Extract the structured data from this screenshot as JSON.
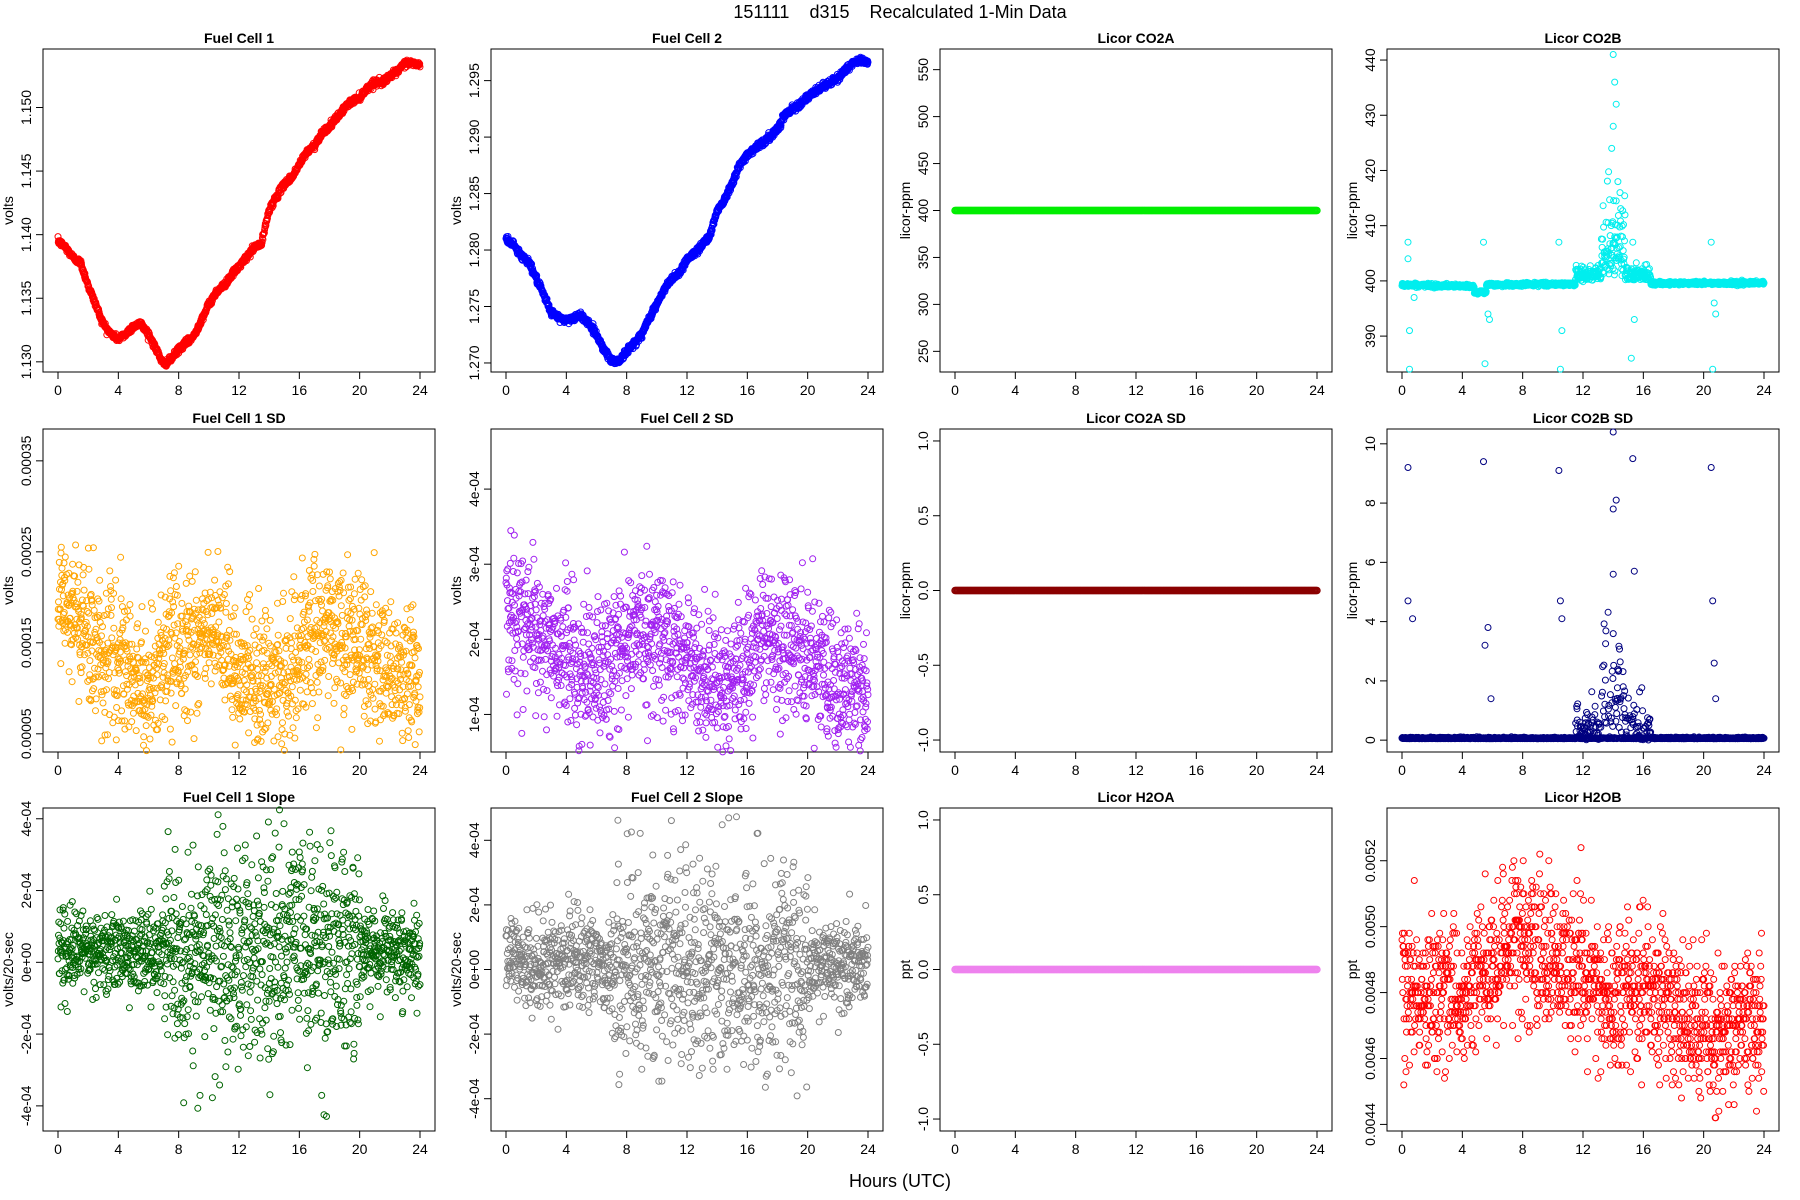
{
  "title": "151111    d315    Recalculated 1-Min Data",
  "x_label": "Hours (UTC)",
  "chart_data": [
    {
      "type": "scatter",
      "title": "Fuel Cell 1",
      "ylabel": "volts",
      "color": "#ff0000",
      "xlim": [
        0,
        24
      ],
      "ylim": [
        1.1292,
        1.1546
      ],
      "x_ticks": [
        "0",
        "4",
        "8",
        "12",
        "16",
        "20",
        "24"
      ],
      "y_ticks": [
        "1.130",
        "1.135",
        "1.140",
        "1.145",
        "1.150"
      ],
      "series": [
        {
          "kind": "path",
          "x": [
            0,
            0.5,
            1,
            1.5,
            2,
            2.5,
            3,
            3.5,
            4,
            4.5,
            5,
            5.5,
            6,
            6.5,
            7,
            7.5,
            8,
            8.5,
            9,
            9.5,
            10,
            10.5,
            11,
            11.5,
            12,
            12.5,
            13,
            13.5,
            14,
            14.5,
            15,
            15.5,
            16,
            16.5,
            17,
            17.5,
            18,
            18.5,
            19,
            19.5,
            20,
            20.5,
            21,
            21.5,
            22,
            22.5,
            23,
            23.5,
            24
          ],
          "y": [
            1.1395,
            1.139,
            1.1382,
            1.1378,
            1.136,
            1.1345,
            1.133,
            1.1322,
            1.1318,
            1.1322,
            1.1328,
            1.133,
            1.1322,
            1.131,
            1.1298,
            1.1302,
            1.131,
            1.1315,
            1.132,
            1.1333,
            1.1345,
            1.1355,
            1.136,
            1.1368,
            1.1375,
            1.1382,
            1.139,
            1.1393,
            1.142,
            1.143,
            1.144,
            1.1445,
            1.1455,
            1.1465,
            1.147,
            1.148,
            1.1485,
            1.1492,
            1.15,
            1.1505,
            1.1508,
            1.1515,
            1.152,
            1.152,
            1.1525,
            1.1528,
            1.1535,
            1.1535,
            1.1533
          ],
          "noise": 0.00025,
          "dense": true
        }
      ]
    },
    {
      "type": "scatter",
      "title": "Fuel Cell 2",
      "ylabel": "volts",
      "color": "#0000ff",
      "xlim": [
        0,
        24
      ],
      "ylim": [
        1.2692,
        1.2978
      ],
      "x_ticks": [
        "0",
        "4",
        "8",
        "12",
        "16",
        "20",
        "24"
      ],
      "y_ticks": [
        "1.270",
        "1.275",
        "1.280",
        "1.285",
        "1.290",
        "1.295"
      ],
      "series": [
        {
          "kind": "path",
          "x": [
            0,
            0.5,
            1,
            1.5,
            2,
            2.5,
            3,
            3.5,
            4,
            4.5,
            5,
            5.5,
            6,
            6.5,
            7,
            7.5,
            8,
            8.5,
            9,
            9.5,
            10,
            10.5,
            11,
            11.5,
            12,
            12.5,
            13,
            13.5,
            14,
            14.5,
            15,
            15.5,
            16,
            16.5,
            17,
            17.5,
            18,
            18.5,
            19,
            19.5,
            20,
            20.5,
            21,
            21.5,
            22,
            22.5,
            23,
            23.5,
            24
          ],
          "y": [
            1.281,
            1.2805,
            1.2795,
            1.279,
            1.2775,
            1.276,
            1.2745,
            1.274,
            1.2738,
            1.274,
            1.2742,
            1.2735,
            1.2725,
            1.2712,
            1.2702,
            1.2702,
            1.271,
            1.2718,
            1.2725,
            1.274,
            1.2752,
            1.2765,
            1.2775,
            1.278,
            1.2792,
            1.2797,
            1.2805,
            1.2812,
            1.2835,
            1.2845,
            1.286,
            1.2875,
            1.2885,
            1.289,
            1.2895,
            1.29,
            1.2908,
            1.292,
            1.2925,
            1.293,
            1.2935,
            1.294,
            1.2945,
            1.2948,
            1.2952,
            1.296,
            1.2965,
            1.2968,
            1.2967
          ],
          "noise": 0.0003,
          "dense": true
        }
      ]
    },
    {
      "type": "scatter",
      "title": "Licor CO2A",
      "ylabel": "licor-ppm",
      "color": "#00ee00",
      "xlim": [
        0,
        24
      ],
      "ylim": [
        228,
        572
      ],
      "x_ticks": [
        "0",
        "4",
        "8",
        "12",
        "16",
        "20",
        "24"
      ],
      "y_ticks": [
        "250",
        "300",
        "350",
        "400",
        "450",
        "500",
        "550"
      ],
      "series": [
        {
          "kind": "flat",
          "value": 400
        }
      ]
    },
    {
      "type": "scatter",
      "title": "Licor CO2B",
      "ylabel": "licor-ppm",
      "color": "#00eeee",
      "xlim": [
        0,
        24
      ],
      "ylim": [
        383.5,
        442
      ],
      "x_ticks": [
        "0",
        "4",
        "8",
        "12",
        "16",
        "20",
        "24"
      ],
      "y_ticks": [
        "390",
        "400",
        "410",
        "420",
        "430",
        "440"
      ],
      "series": [
        {
          "kind": "co2b"
        }
      ]
    },
    {
      "type": "scatter",
      "title": "Fuel Cell 1 SD",
      "ylabel": "volts",
      "color": "#ffa500",
      "xlim": [
        0,
        24
      ],
      "ylim": [
        3e-05,
        0.000385
      ],
      "x_ticks": [
        "0",
        "4",
        "8",
        "12",
        "16",
        "20",
        "24"
      ],
      "y_ticks": [
        "0.00005",
        "0.00015",
        "0.00025",
        "0.00035"
      ],
      "series": [
        {
          "kind": "noise",
          "baseline_x": [
            0,
            1,
            3,
            5,
            6,
            8,
            10,
            12,
            14,
            16,
            17,
            19,
            21,
            22,
            24
          ],
          "baseline_y": [
            0.00019,
            0.00018,
            0.00014,
            0.00011,
            0.0001,
            0.00015,
            0.00016,
            0.00012,
            0.0001,
            0.00012,
            0.00017,
            0.00015,
            0.00013,
            0.00011,
            0.00012
          ],
          "spread": 4e-05
        }
      ]
    },
    {
      "type": "scatter",
      "title": "Fuel Cell 2 SD",
      "ylabel": "volts",
      "color": "#a020f0",
      "xlim": [
        0,
        24
      ],
      "ylim": [
        5e-05,
        0.00048
      ],
      "x_ticks": [
        "0",
        "4",
        "8",
        "12",
        "16",
        "20",
        "24"
      ],
      "y_ticks": [
        "1e-04",
        "2e-04",
        "3e-04",
        "4e-04"
      ],
      "series": [
        {
          "kind": "noise",
          "baseline_x": [
            0,
            1,
            3,
            5,
            6,
            8,
            10,
            12,
            14,
            16,
            17,
            19,
            21,
            22,
            24
          ],
          "baseline_y": [
            0.00024,
            0.00023,
            0.00019,
            0.00016,
            0.00015,
            0.0002,
            0.00021,
            0.00017,
            0.00014,
            0.00016,
            0.00021,
            0.00019,
            0.00016,
            0.00013,
            0.00014
          ],
          "spread": 4.5e-05
        }
      ]
    },
    {
      "type": "scatter",
      "title": "Licor CO2A SD",
      "ylabel": "licor-ppm",
      "color": "#8b0000",
      "xlim": [
        0,
        24
      ],
      "ylim": [
        -1.08,
        1.08
      ],
      "x_ticks": [
        "0",
        "4",
        "8",
        "12",
        "16",
        "20",
        "24"
      ],
      "y_ticks": [
        "-1.0",
        "-0.5",
        "0.0",
        "0.5",
        "1.0"
      ],
      "series": [
        {
          "kind": "flat",
          "value": 0
        }
      ]
    },
    {
      "type": "scatter",
      "title": "Licor CO2B SD",
      "ylabel": "licor-ppm",
      "color": "#000080",
      "xlim": [
        0,
        24
      ],
      "ylim": [
        -0.4,
        10.5
      ],
      "x_ticks": [
        "0",
        "4",
        "8",
        "12",
        "16",
        "20",
        "24"
      ],
      "y_ticks": [
        "0",
        "2",
        "4",
        "6",
        "8",
        "10"
      ],
      "series": [
        {
          "kind": "co2bsd"
        }
      ]
    },
    {
      "type": "scatter",
      "title": "Fuel Cell 1 Slope",
      "ylabel": "volts/20-sec",
      "color": "#006400",
      "xlim": [
        0,
        24
      ],
      "ylim": [
        -0.00047,
        0.00043
      ],
      "x_ticks": [
        "0",
        "4",
        "8",
        "12",
        "16",
        "20",
        "24"
      ],
      "y_ticks": [
        "-4e-04",
        "-2e-04",
        "0e+00",
        "2e-04",
        "4e-04"
      ],
      "series": [
        {
          "kind": "slope",
          "base": 3e-05,
          "spread_low": 6e-05,
          "spread_high": 0.00015
        }
      ]
    },
    {
      "type": "scatter",
      "title": "Fuel Cell 2 Slope",
      "ylabel": "volts/20-sec",
      "color": "#808080",
      "xlim": [
        0,
        24
      ],
      "ylim": [
        -0.0005,
        0.0005
      ],
      "x_ticks": [
        "0",
        "4",
        "8",
        "12",
        "16",
        "20",
        "24"
      ],
      "y_ticks": [
        "-4e-04",
        "-2e-04",
        "0e+00",
        "2e-04",
        "4e-04"
      ],
      "series": [
        {
          "kind": "slope",
          "base": 2e-05,
          "spread_low": 7e-05,
          "spread_high": 0.00016
        }
      ]
    },
    {
      "type": "scatter",
      "title": "Licor H2OA",
      "ylabel": "ppt",
      "color": "#ee82ee",
      "xlim": [
        0,
        24
      ],
      "ylim": [
        -1.08,
        1.08
      ],
      "x_ticks": [
        "0",
        "4",
        "8",
        "12",
        "16",
        "20",
        "24"
      ],
      "y_ticks": [
        "-1.0",
        "-0.5",
        "0.0",
        "0.5",
        "1.0"
      ],
      "series": [
        {
          "kind": "flat",
          "value": 0
        }
      ]
    },
    {
      "type": "scatter",
      "title": "Licor H2OB",
      "ylabel": "ppt",
      "color": "#ff0000",
      "xlim": [
        0,
        24
      ],
      "ylim": [
        0.00438,
        0.00536
      ],
      "x_ticks": [
        "0",
        "4",
        "8",
        "12",
        "16",
        "20",
        "24"
      ],
      "y_ticks": [
        "0.0044",
        "0.0046",
        "0.0048",
        "0.0050",
        "0.0052"
      ],
      "series": [
        {
          "kind": "h2ob",
          "baseline_x": [
            0,
            4,
            6,
            7,
            8,
            10,
            12,
            14,
            16,
            18,
            20,
            22,
            24
          ],
          "baseline_y": [
            0.0048,
            0.0048,
            0.0049,
            0.00495,
            0.00498,
            0.0049,
            0.00485,
            0.0048,
            0.0048,
            0.00475,
            0.00468,
            0.0047,
            0.00475
          ],
          "spread": 0.00018
        }
      ]
    }
  ]
}
